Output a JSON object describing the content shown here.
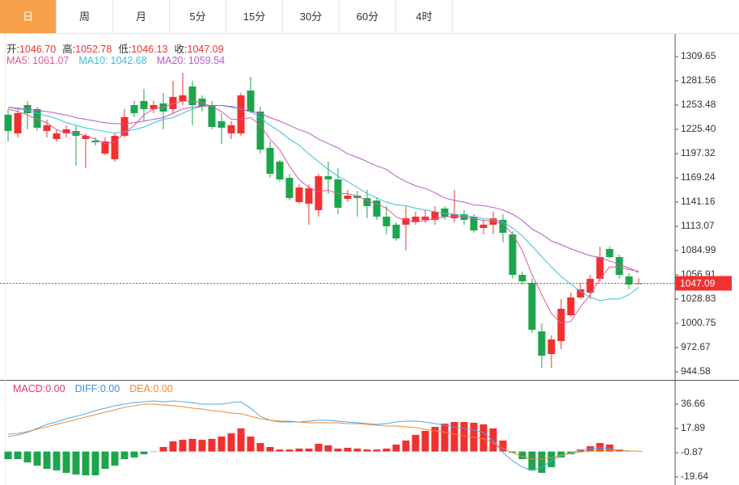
{
  "tabs": {
    "items": [
      "日",
      "周",
      "月",
      "5分",
      "15分",
      "30分",
      "60分",
      "4时"
    ],
    "active": 0
  },
  "chart_data": [
    {
      "type": "candlestick",
      "up_color": "#f23030",
      "down_color": "#1da54c",
      "readout": [
        {
          "label": "开:",
          "text": "1046.70"
        },
        {
          "label": "高:",
          "text": "1052.78"
        },
        {
          "label": "低:",
          "text": "1046.13"
        },
        {
          "label": "收:",
          "text": "1047.09"
        }
      ],
      "open": [
        1242.3,
        1220.7,
        1253.5,
        1248.8,
        1223.5,
        1214.2,
        1220.7,
        1223.5,
        1214.2,
        1212.3,
        1197.3,
        1190.8,
        1217.9,
        1253.5,
        1258.2,
        1248.8,
        1255.4,
        1248.8,
        1258.2,
        1275.0,
        1261.0,
        1253.5,
        1234.8,
        1220.7,
        1220.7,
        1270.3,
        1246.0,
        1203.9,
        1188.0,
        1169.3,
        1141.2,
        1139.3,
        1131.8,
        1171.1,
        1167.4,
        1144.9,
        1148.6,
        1145.8,
        1143.0,
        1124.3,
        1115.0,
        1115.0,
        1117.8,
        1120.6,
        1120.6,
        1133.7,
        1122.4,
        1127.1,
        1124.3,
        1111.2,
        1115.0,
        1120.6,
        1103.7,
        1056.9,
        1047.6,
        991.4,
        965.2,
        980.2,
        1010.1,
        1030.7,
        1036.3,
        1052.3,
        1086.9,
        1077.5,
        1055.1,
        1046.7
      ],
      "high": [
        1248.8,
        1248.8,
        1258.2,
        1251.6,
        1236.6,
        1225.4,
        1230.1,
        1230.1,
        1220.7,
        1216.1,
        1216.1,
        1220.7,
        1248.8,
        1258.2,
        1272.2,
        1258.2,
        1267.5,
        1281.6,
        1290.9,
        1281.6,
        1264.8,
        1258.2,
        1244.1,
        1234.8,
        1267.5,
        1286.2,
        1251.6,
        1211.4,
        1189.8,
        1173.9,
        1161.8,
        1161.8,
        1173.9,
        1188.0,
        1180.5,
        1155.2,
        1154.3,
        1155.2,
        1146.8,
        1136.5,
        1117.8,
        1136.5,
        1129.9,
        1131.8,
        1136.5,
        1136.5,
        1155.2,
        1131.8,
        1127.1,
        1120.6,
        1129.9,
        1127.1,
        1107.5,
        1060.7,
        1052.3,
        1000.8,
        986.7,
        1028.9,
        1036.3,
        1047.6,
        1056.9,
        1089.7,
        1089.7,
        1080.3,
        1058.8,
        1052.78
      ],
      "low": [
        1211.4,
        1216.1,
        1225.4,
        1223.5,
        1216.1,
        1211.4,
        1216.1,
        1183.3,
        1180.5,
        1206.7,
        1195.5,
        1188.0,
        1216.1,
        1239.5,
        1234.8,
        1244.1,
        1225.4,
        1244.1,
        1253.5,
        1230.1,
        1246.0,
        1225.4,
        1208.6,
        1214.2,
        1217.9,
        1244.1,
        1197.3,
        1169.3,
        1164.6,
        1143.0,
        1139.3,
        1115.0,
        1124.3,
        1150.5,
        1127.1,
        1141.2,
        1124.3,
        1122.4,
        1120.6,
        1103.7,
        1096.2,
        1085.0,
        1115.0,
        1116.8,
        1115.0,
        1120.6,
        1117.8,
        1115.0,
        1105.6,
        1103.7,
        1103.7,
        1094.4,
        1052.3,
        1045.7,
        989.5,
        949.3,
        949.3,
        970.8,
        1008.3,
        1028.9,
        1028.9,
        1049.4,
        1075.6,
        1052.3,
        1040.1,
        1046.13
      ],
      "close": [
        1223.5,
        1244.1,
        1244.1,
        1227.3,
        1230.1,
        1220.7,
        1225.4,
        1217.9,
        1217.9,
        1210.4,
        1211.4,
        1217.9,
        1239.5,
        1244.1,
        1248.8,
        1253.5,
        1246.0,
        1262.9,
        1264.8,
        1253.5,
        1251.6,
        1228.2,
        1227.3,
        1230.1,
        1264.8,
        1246.0,
        1202.0,
        1173.9,
        1167.4,
        1145.8,
        1158.0,
        1157.1,
        1171.1,
        1167.4,
        1134.6,
        1148.6,
        1145.8,
        1136.5,
        1124.3,
        1113.1,
        1099.1,
        1122.4,
        1124.3,
        1124.3,
        1129.9,
        1124.3,
        1127.1,
        1120.6,
        1108.4,
        1115.0,
        1122.4,
        1105.6,
        1056.9,
        1049.4,
        993.3,
        963.3,
        982.1,
        1017.6,
        1030.7,
        1040.1,
        1052.3,
        1077.5,
        1077.5,
        1056.9,
        1045.7,
        1047.09
      ],
      "series": [
        {
          "name": "MA5:",
          "color": "#e2569a",
          "values": [
            1249,
            1246,
            1242,
            1237,
            1233,
            1225,
            1221,
            1221,
            1218,
            1214,
            1209,
            1211,
            1221,
            1230,
            1242,
            1249,
            1251,
            1255,
            1258,
            1258,
            1256,
            1252,
            1246,
            1237,
            1237,
            1239,
            1230,
            1214,
            1202,
            1183,
            1167,
            1158,
            1153,
            1155,
            1151,
            1151,
            1148,
            1143,
            1139,
            1134,
            1124,
            1120,
            1118,
            1120,
            1122,
            1124,
            1125,
            1124,
            1122,
            1120,
            1119,
            1116,
            1104,
            1085,
            1057,
            1034,
            1012,
            1001,
            1003,
            1020,
            1034,
            1052,
            1066,
            1066,
            1063,
            1061.07
          ]
        },
        {
          "name": "MA10:",
          "color": "#3bbfd6",
          "values": [
            1251,
            1249,
            1247,
            1244,
            1241,
            1238,
            1233,
            1230,
            1227,
            1225,
            1223,
            1221,
            1223,
            1225,
            1228,
            1233,
            1237,
            1239,
            1244,
            1249,
            1252,
            1253,
            1253,
            1251,
            1249,
            1246,
            1239,
            1230,
            1223,
            1214,
            1207,
            1197,
            1188,
            1179,
            1171,
            1165,
            1158,
            1151,
            1146,
            1141,
            1138,
            1137,
            1134,
            1132,
            1130,
            1128,
            1127,
            1126,
            1124,
            1122,
            1121,
            1118,
            1111,
            1102,
            1090,
            1078,
            1066,
            1055,
            1046,
            1038,
            1031,
            1027,
            1029,
            1029,
            1034,
            1042.68
          ]
        },
        {
          "name": "MA20:",
          "color": "#b35cc6",
          "values": [
            1251,
            1250,
            1249,
            1247,
            1246,
            1244,
            1242,
            1239,
            1237,
            1235,
            1233,
            1232,
            1232,
            1233,
            1235,
            1237,
            1239,
            1244,
            1249,
            1251,
            1252,
            1253,
            1253,
            1252,
            1249,
            1246,
            1244,
            1239,
            1235,
            1230,
            1225,
            1221,
            1214,
            1209,
            1204,
            1197,
            1193,
            1188,
            1183,
            1179,
            1171,
            1165,
            1160,
            1157,
            1152,
            1146,
            1143,
            1141,
            1138,
            1137,
            1135,
            1132,
            1127,
            1120,
            1110,
            1104,
            1096,
            1092,
            1087,
            1083,
            1079,
            1077,
            1073,
            1069,
            1065,
            1059.54
          ]
        }
      ],
      "ylim": [
        935.22,
        1335.86
      ],
      "yticks": [
        944.58,
        972.67,
        1000.75,
        1028.83,
        1056.91,
        1084.99,
        1113.07,
        1141.16,
        1169.24,
        1197.32,
        {
          "value": 1225.4,
          "label": "1225.40"
        },
        1253.48,
        1281.56,
        1309.65
      ]
    },
    {
      "type": "macd",
      "readout": [
        {
          "label": "MACD:",
          "text": "0.00",
          "color": "#ee3366"
        },
        {
          "label": "DIFF:",
          "text": "0.00",
          "color": "#3d8fe0"
        },
        {
          "label": "DEA:",
          "text": "0.00",
          "color": "#f08a2e"
        }
      ],
      "histogram": [
        -5.9,
        -5.9,
        -8.4,
        -10.9,
        -13.4,
        -14.6,
        -16.5,
        -17.8,
        -18.4,
        -18.4,
        -13.4,
        -10.9,
        -5.9,
        -4.6,
        -2.1,
        -0.3,
        3.5,
        7.9,
        9.1,
        9.8,
        9.1,
        9.8,
        11.6,
        14.1,
        17.9,
        11.6,
        6.6,
        3.5,
        1.6,
        1.6,
        2.3,
        2.3,
        6.0,
        4.8,
        2.3,
        2.9,
        2.3,
        1.6,
        1.6,
        2.3,
        5.4,
        8.5,
        12.9,
        16.0,
        19.1,
        21.6,
        22.9,
        22.9,
        22.3,
        21.0,
        17.9,
        8.5,
        -0.9,
        -5.9,
        -14.6,
        -16.5,
        -12.1,
        -4.6,
        -2.1,
        1.6,
        4.1,
        6.6,
        5.4,
        1.6,
        0.4,
        0.4
      ],
      "series": [
        {
          "name": "DIFF",
          "color": "#4aa8e8",
          "values": [
            11.6,
            12.9,
            14.8,
            17.9,
            21.0,
            22.9,
            25.4,
            27.3,
            29.2,
            31.7,
            33.5,
            35.4,
            36.7,
            37.9,
            38.5,
            39.2,
            38.5,
            39.2,
            38.5,
            37.9,
            36.7,
            36.7,
            36.7,
            37.9,
            38.5,
            33.5,
            27.3,
            24.2,
            22.9,
            22.9,
            22.9,
            23.5,
            24.2,
            24.2,
            23.5,
            22.9,
            22.3,
            21.6,
            21.0,
            21.6,
            22.9,
            23.5,
            23.5,
            22.9,
            21.6,
            20.4,
            19.1,
            17.9,
            16.6,
            14.8,
            8.5,
            -0.9,
            -7.1,
            -12.1,
            -14.6,
            -12.1,
            -7.1,
            -3.4,
            -0.9,
            1.0,
            2.3,
            2.9,
            2.3,
            1.0,
            0.4,
            0.4
          ]
        },
        {
          "name": "DEA",
          "color": "#f08a2e",
          "values": [
            13.5,
            14.1,
            15.4,
            17.3,
            19.1,
            21.0,
            22.9,
            24.8,
            26.7,
            28.5,
            30.4,
            32.3,
            34.2,
            35.4,
            36.7,
            36.7,
            36.0,
            35.4,
            34.8,
            33.5,
            32.9,
            31.7,
            31.0,
            29.8,
            29.2,
            27.3,
            25.4,
            24.2,
            23.5,
            23.5,
            22.9,
            22.3,
            22.3,
            22.3,
            22.3,
            21.6,
            21.6,
            21.0,
            20.4,
            19.8,
            19.8,
            19.1,
            18.5,
            17.3,
            16.0,
            14.8,
            13.5,
            12.3,
            11.0,
            9.8,
            6.6,
            2.3,
            -0.9,
            -4.0,
            -5.9,
            -5.9,
            -4.6,
            -2.8,
            -1.5,
            -0.3,
            0.4,
            1.0,
            1.0,
            1.0,
            0.4,
            0.4
          ]
        }
      ],
      "ylim": [
        -25.9,
        54.18
      ],
      "yticks": [
        36.66,
        17.89,
        -0.87,
        -19.64
      ]
    }
  ]
}
